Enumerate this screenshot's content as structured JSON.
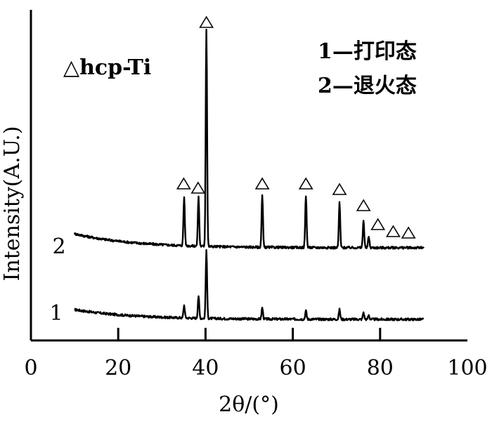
{
  "chart_data": {
    "type": "line",
    "xlabel": "2θ/(°)",
    "ylabel": "Intensity(A.U.)",
    "xlim": [
      0,
      100
    ],
    "xticks": [
      "0",
      "20",
      "40",
      "60",
      "80",
      "100"
    ],
    "grid": false,
    "series": [
      {
        "name": "1",
        "baseline_start": 9,
        "baseline_end": 2,
        "peaks": [
          {
            "x": 35.1,
            "y": 9
          },
          {
            "x": 38.4,
            "y": 16
          },
          {
            "x": 40.2,
            "y": 48
          },
          {
            "x": 53.0,
            "y": 8
          },
          {
            "x": 63.0,
            "y": 6
          },
          {
            "x": 70.7,
            "y": 7
          },
          {
            "x": 76.2,
            "y": 5
          },
          {
            "x": 77.4,
            "y": 3
          }
        ]
      },
      {
        "name": "2",
        "baseline_start": 12,
        "baseline_end": 2,
        "peaks": [
          {
            "x": 35.1,
            "y": 35
          },
          {
            "x": 38.4,
            "y": 35
          },
          {
            "x": 40.2,
            "y": 155
          },
          {
            "x": 53.0,
            "y": 37
          },
          {
            "x": 63.0,
            "y": 37
          },
          {
            "x": 70.7,
            "y": 32
          },
          {
            "x": 76.2,
            "y": 20
          },
          {
            "x": 77.4,
            "y": 8
          }
        ]
      }
    ],
    "markers": {
      "symbol": "△",
      "positions": [
        35.0,
        38.3,
        40.2,
        53.0,
        63.0,
        70.7,
        76.2,
        79.5,
        83.0,
        86.5
      ]
    },
    "legend": {
      "phase": "△hcp-Ti",
      "entries": [
        "1—打印态",
        "2—退火态"
      ]
    }
  }
}
